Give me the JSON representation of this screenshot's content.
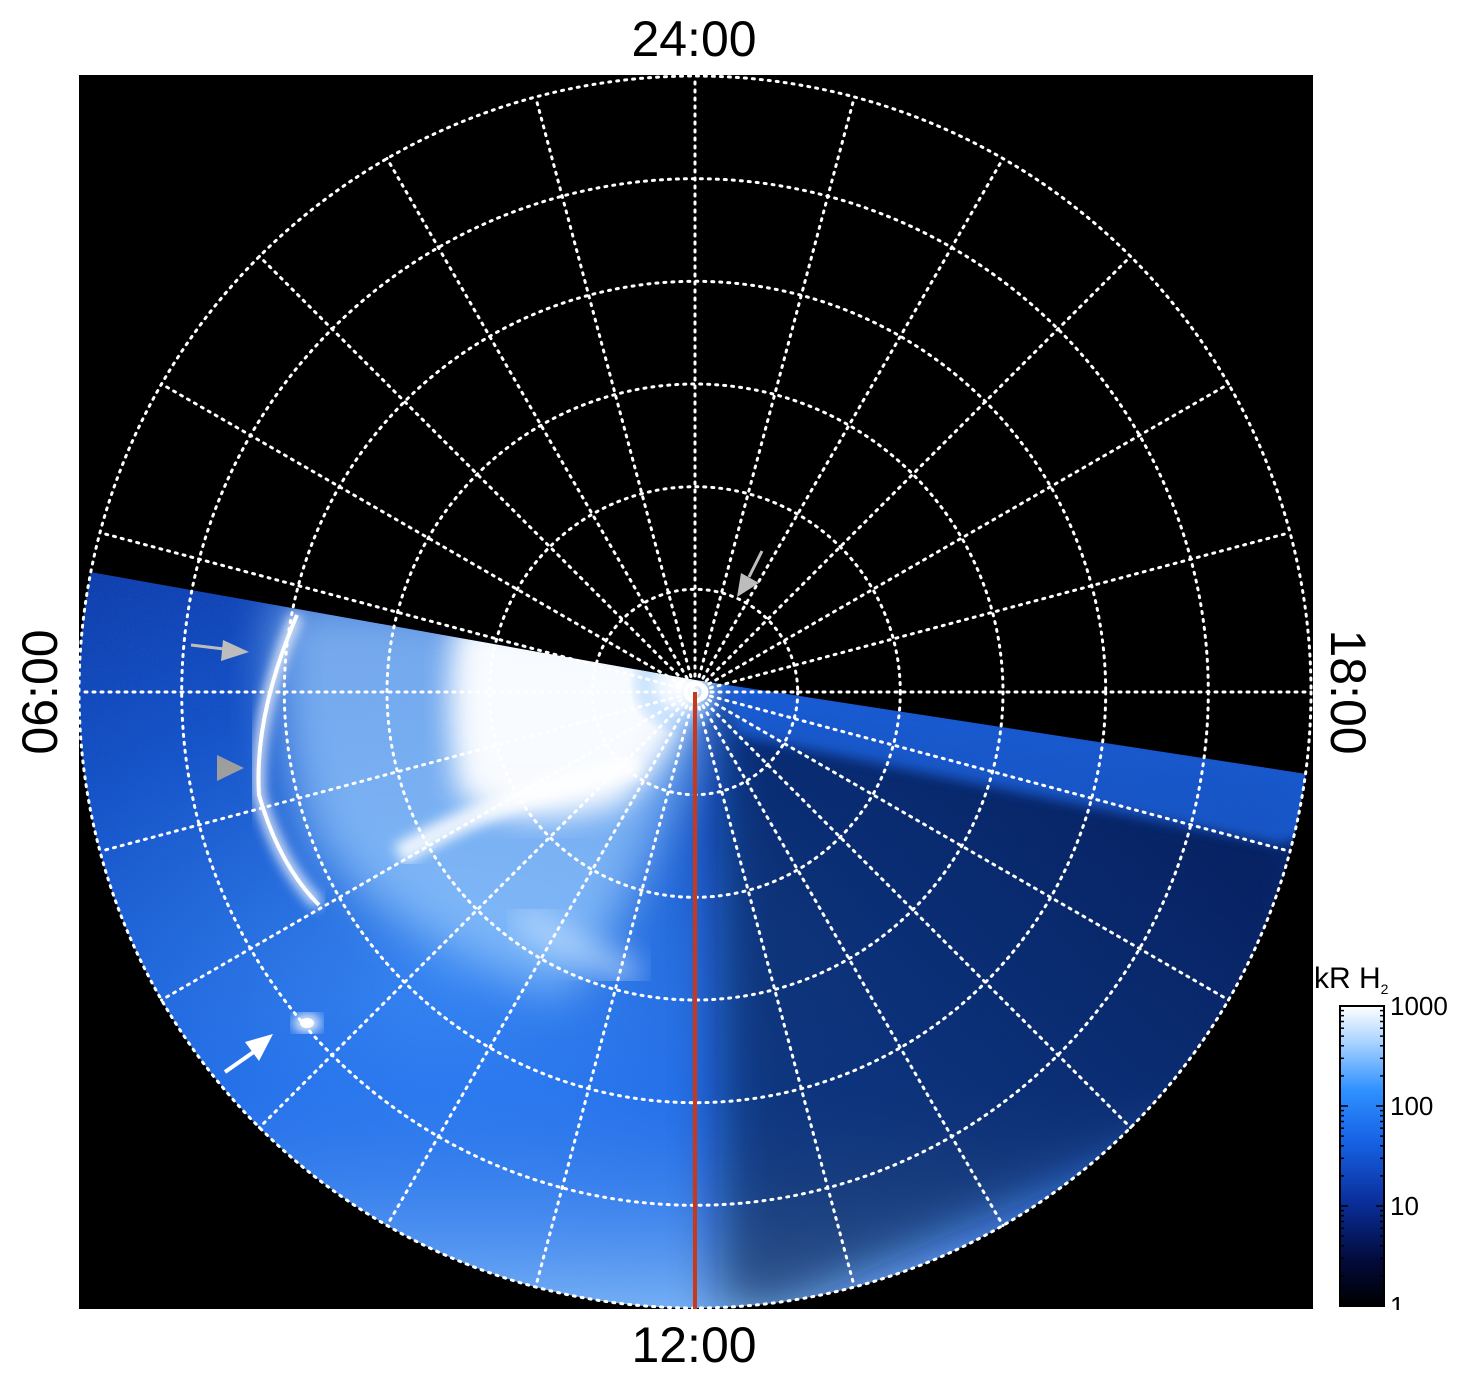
{
  "local_time_labels": {
    "top": "24:00",
    "bottom": "12:00",
    "left": "06:00",
    "right": "18:00"
  },
  "colorbar": {
    "title_main": "kR H",
    "title_sub": "2",
    "ticks": [
      "1000",
      "100",
      "10",
      "1"
    ],
    "scale": "log",
    "range": [
      1,
      1000
    ]
  },
  "colors": {
    "background": "#000000",
    "emission_low": "#08123f",
    "emission_mid": "#1a7bff",
    "emission_high": "#ffffff",
    "meridian_line": "#c8381a",
    "grid": "#ffffff",
    "arrow_white": "#ffffff",
    "arrow_gray": "#bdbdbd"
  },
  "grid": {
    "style": "dotted",
    "latitude_rings": 6,
    "meridians": 24
  },
  "annotations": [
    {
      "name": "arrow-dusk-pointer",
      "color": "gray"
    },
    {
      "name": "arrow-dawn-upper",
      "color": "gray"
    },
    {
      "name": "arrow-dawn-middle",
      "color": "gray"
    },
    {
      "name": "arrow-dawn-lower",
      "color": "white"
    }
  ]
}
